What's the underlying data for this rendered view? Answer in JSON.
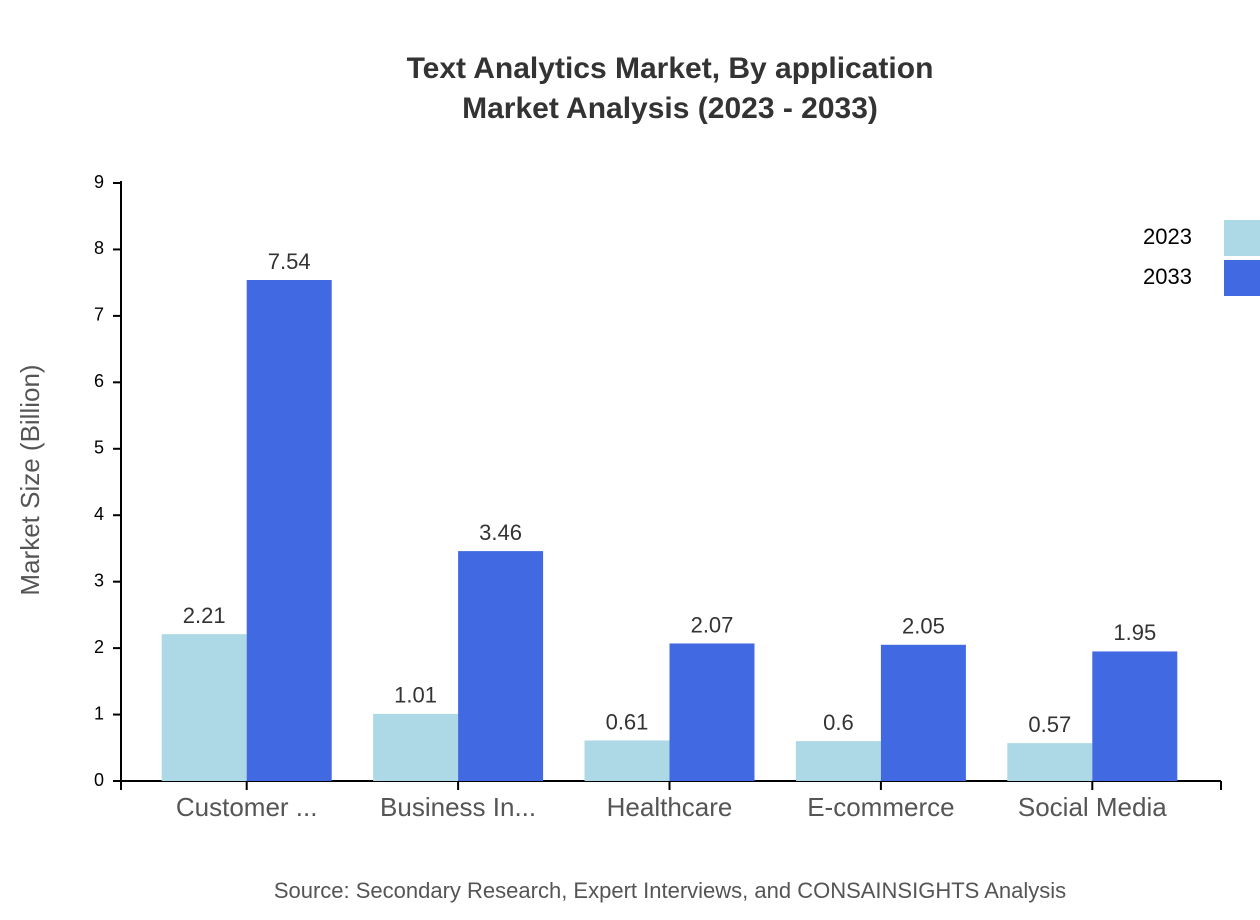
{
  "chart_data": {
    "type": "bar",
    "title": [
      "Text Analytics Market, By application",
      "Market Analysis (2023 - 2033)"
    ],
    "y_label": "Market Size (Billion)",
    "source": "Source: Secondary Research, Expert Interviews, and CONSAINSIGHTS Analysis",
    "categories": [
      "Customer ...",
      "Business In...",
      "Healthcare",
      "E-commerce",
      "Social Media"
    ],
    "series": [
      {
        "name": "2023",
        "color": "#add8e6",
        "values": [
          2.21,
          1.01,
          0.61,
          0.6,
          0.57
        ]
      },
      {
        "name": "2033",
        "color": "#4169e1",
        "values": [
          7.54,
          3.46,
          2.07,
          2.05,
          1.95
        ]
      }
    ],
    "ylim": [
      0,
      9
    ],
    "yticks": [
      0,
      1,
      2,
      3,
      4,
      5,
      6,
      7,
      8,
      9
    ],
    "legend": "top-right"
  }
}
